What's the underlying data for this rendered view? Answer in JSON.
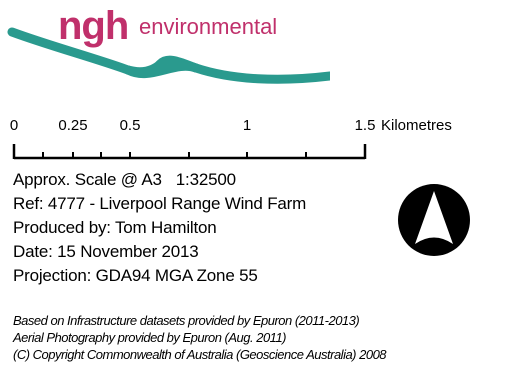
{
  "logo": {
    "brand": "ngh",
    "tagline": "environmental",
    "brand_color": "#c0306b",
    "swoosh_color": "#2a9a8e"
  },
  "scale_bar": {
    "ticks": [
      "0",
      "0.25",
      "0.5",
      "1",
      "1.5"
    ],
    "units": "Kilometres"
  },
  "info": {
    "scale_label": "Approx. Scale @ A3",
    "scale_ratio": "1:32500",
    "ref": "Ref: 4777 - Liverpool Range Wind Farm",
    "produced_by": "Produced by: Tom Hamilton",
    "date": "Date: 15 November 2013",
    "projection": "Projection: GDA94 MGA Zone 55"
  },
  "north_arrow": {
    "icon": "north-arrow-icon"
  },
  "credits": [
    "Based on Infrastructure datasets provided by Epuron (2011-2013)",
    "Aerial Photography provided by Epuron (Aug. 2011)",
    "(C) Copyright Commonwealth of Australia (Geoscience Australia) 2008"
  ]
}
